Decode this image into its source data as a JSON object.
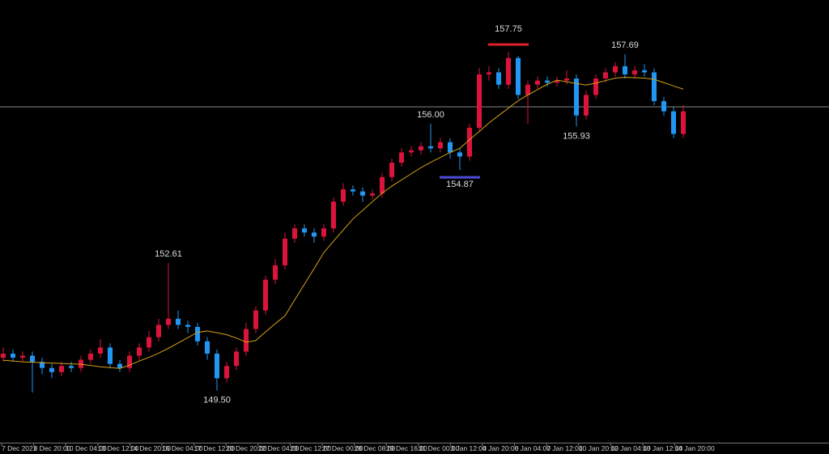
{
  "chart_data": {
    "type": "candlestick",
    "open": [
      150.3,
      150.4,
      150.3,
      150.35,
      150.2,
      150.05,
      149.95,
      150.1,
      150.05,
      150.25,
      150.4,
      150.55,
      150.15,
      150.05,
      150.35,
      150.55,
      150.8,
      151.1,
      151.25,
      151.1,
      151.05,
      150.7,
      150.4,
      149.8,
      150.1,
      150.45,
      151.0,
      151.45,
      152.2,
      152.55,
      153.2,
      153.45,
      153.35,
      153.25,
      153.45,
      154.1,
      154.4,
      154.35,
      154.25,
      154.3,
      154.7,
      155.05,
      155.3,
      155.35,
      155.45,
      155.4,
      155.55,
      155.3,
      155.2,
      155.9,
      157.2,
      157.25,
      156.95,
      157.6,
      156.7,
      156.95,
      157.05,
      157.0,
      157.05,
      157.1,
      156.2,
      156.7,
      157.1,
      157.25,
      157.4,
      157.2,
      157.3,
      157.25,
      156.55,
      156.3,
      155.75
    ],
    "high": [
      150.55,
      150.5,
      150.45,
      150.45,
      150.3,
      150.15,
      150.2,
      150.2,
      150.35,
      150.5,
      150.75,
      150.65,
      150.25,
      150.45,
      150.65,
      150.95,
      151.25,
      152.61,
      151.45,
      151.2,
      151.15,
      150.8,
      150.5,
      150.2,
      150.55,
      151.15,
      151.55,
      152.3,
      152.7,
      153.35,
      153.55,
      153.55,
      153.45,
      153.55,
      154.2,
      154.55,
      154.5,
      154.45,
      154.4,
      154.8,
      155.15,
      155.4,
      155.45,
      155.55,
      156.0,
      155.65,
      155.65,
      155.4,
      156.0,
      157.35,
      157.4,
      157.35,
      157.75,
      157.65,
      157.05,
      157.15,
      157.15,
      157.15,
      157.3,
      157.2,
      156.8,
      157.2,
      157.35,
      157.5,
      157.69,
      157.4,
      157.45,
      157.35,
      156.65,
      156.4,
      156.45
    ],
    "low": [
      150.2,
      150.2,
      150.2,
      149.45,
      149.9,
      149.8,
      149.85,
      149.95,
      149.95,
      150.15,
      150.3,
      150.05,
      149.95,
      149.95,
      150.25,
      150.45,
      150.7,
      151.0,
      151.0,
      150.9,
      150.6,
      150.25,
      149.5,
      149.7,
      150.0,
      150.35,
      150.9,
      151.35,
      152.1,
      152.45,
      153.1,
      153.25,
      153.1,
      153.15,
      153.35,
      154.0,
      154.25,
      154.1,
      154.15,
      154.2,
      154.6,
      154.95,
      155.2,
      155.25,
      155.3,
      155.3,
      155.15,
      154.87,
      155.1,
      155.8,
      157.05,
      156.85,
      156.85,
      156.6,
      156.0,
      156.85,
      156.9,
      156.9,
      156.95,
      155.93,
      156.1,
      156.6,
      157.0,
      157.15,
      157.1,
      157.1,
      157.15,
      156.45,
      156.2,
      155.65,
      155.65
    ],
    "close": [
      150.4,
      150.3,
      150.35,
      150.2,
      150.05,
      149.95,
      150.1,
      150.05,
      150.25,
      150.4,
      150.55,
      150.15,
      150.05,
      150.35,
      150.55,
      150.8,
      151.1,
      151.25,
      151.1,
      151.05,
      150.7,
      150.4,
      149.8,
      150.1,
      150.45,
      151.0,
      151.45,
      152.2,
      152.55,
      153.2,
      153.45,
      153.35,
      153.25,
      153.45,
      154.1,
      154.4,
      154.35,
      154.25,
      154.3,
      154.7,
      155.05,
      155.3,
      155.35,
      155.45,
      155.4,
      155.55,
      155.3,
      155.2,
      155.9,
      157.2,
      157.25,
      156.95,
      157.6,
      156.7,
      156.95,
      157.05,
      157.0,
      157.05,
      157.1,
      156.2,
      156.7,
      157.1,
      157.25,
      157.4,
      157.2,
      157.3,
      157.25,
      156.55,
      156.3,
      155.75,
      156.3
    ],
    "moving_average": {
      "color": "#d4a017",
      "values": [
        150.24,
        150.22,
        150.2,
        150.19,
        150.18,
        150.17,
        150.16,
        150.15,
        150.14,
        150.11,
        150.08,
        150.06,
        150.04,
        150.12,
        150.22,
        150.31,
        150.41,
        150.53,
        150.66,
        150.79,
        150.92,
        150.95,
        150.91,
        150.86,
        150.78,
        150.68,
        150.72,
        150.93,
        151.13,
        151.32,
        151.71,
        152.09,
        152.47,
        152.86,
        153.14,
        153.41,
        153.68,
        153.89,
        154.1,
        154.31,
        154.48,
        154.63,
        154.78,
        154.93,
        155.06,
        155.18,
        155.3,
        155.4,
        155.61,
        155.81,
        156.02,
        156.2,
        156.38,
        156.56,
        156.7,
        156.83,
        156.96,
        157.06,
        157.02,
        156.98,
        156.94,
        156.99,
        157.05,
        157.11,
        157.13,
        157.12,
        157.11,
        157.08,
        157.0,
        156.92,
        156.84
      ]
    },
    "up_color": "#dc143c",
    "down_color": "#2196f3",
    "price_line": 156.41,
    "ylim": [
      149.0,
      158.5
    ],
    "annotations": [
      {
        "label": "157.75",
        "value": 157.75,
        "color": "#e0202a"
      },
      {
        "label": "157.69",
        "value": 157.69
      },
      {
        "label": "156.00",
        "value": 156.0
      },
      {
        "label": "155.93",
        "value": 155.93
      },
      {
        "label": "154.87",
        "value": 154.87,
        "color": "#4b4bd8"
      },
      {
        "label": "152.61",
        "value": 152.61
      },
      {
        "label": "149.50",
        "value": 149.5
      }
    ],
    "x_labels": [
      "7 Dec 2021",
      "8 Dec 20:00",
      "10 Dec 04:00",
      "13 Dec 12:00",
      "14 Dec 20:00",
      "16 Dec 04:00",
      "17 Dec 12:00",
      "20 Dec 20:00",
      "22 Dec 04:00",
      "23 Dec 12:00",
      "27 Dec 00:00",
      "28 Dec 08:00",
      "29 Dec 16:00",
      "31 Dec 00:00",
      "3 Jan 12:00",
      "4 Jan 20:00",
      "6 Jan 04:00",
      "7 Jan 12:00",
      "10 Jan 20:00",
      "12 Jan 04:00",
      "13 Jan 12:00",
      "14 Jan 20:00"
    ]
  }
}
